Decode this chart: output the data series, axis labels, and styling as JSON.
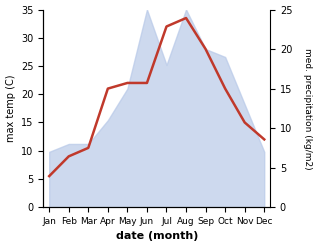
{
  "months": [
    "Jan",
    "Feb",
    "Mar",
    "Apr",
    "May",
    "Jun",
    "Jul",
    "Aug",
    "Sep",
    "Oct",
    "Nov",
    "Dec"
  ],
  "month_indices": [
    0,
    1,
    2,
    3,
    4,
    5,
    6,
    7,
    8,
    9,
    10,
    11
  ],
  "temperature": [
    5.5,
    9.0,
    10.5,
    21.0,
    22.0,
    22.0,
    32.0,
    33.5,
    28.0,
    21.0,
    15.0,
    12.0
  ],
  "precipitation": [
    7,
    8,
    8,
    11,
    15,
    25,
    18,
    25,
    20,
    19,
    13,
    7
  ],
  "temp_color": "#c0392b",
  "precip_color": "#b8c9e8",
  "precip_fill_alpha": 0.7,
  "temp_ylim": [
    0,
    35
  ],
  "precip_ylim": [
    0,
    25
  ],
  "temp_yticks": [
    0,
    5,
    10,
    15,
    20,
    25,
    30,
    35
  ],
  "precip_yticks": [
    0,
    5,
    10,
    15,
    20,
    25
  ],
  "xlabel": "date (month)",
  "ylabel_left": "max temp (C)",
  "ylabel_right": "med. precipitation (kg/m2)",
  "background_color": "#ffffff",
  "linewidth": 1.8,
  "figsize": [
    3.18,
    2.47
  ],
  "dpi": 100
}
